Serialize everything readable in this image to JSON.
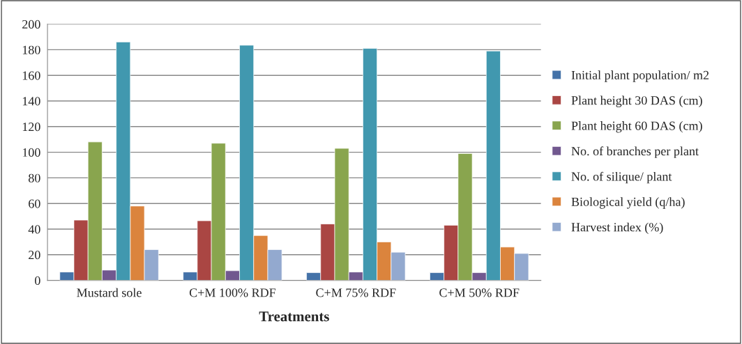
{
  "chart_data": {
    "type": "bar",
    "xlabel": "Treatments",
    "categories": [
      "Mustard sole",
      "C+M 100% RDF",
      "C+M 75% RDF",
      "C+M 50% RDF"
    ],
    "series": [
      {
        "name": "Initial plant population/ m2",
        "color": "#4472a8",
        "values": [
          6.5,
          6.5,
          6,
          6
        ]
      },
      {
        "name": "Plant height 30 DAS (cm)",
        "color": "#aa4643",
        "values": [
          47,
          46.5,
          44,
          43
        ]
      },
      {
        "name": "Plant height 60 DAS (cm)",
        "color": "#89a54e",
        "values": [
          108,
          107,
          103,
          99
        ]
      },
      {
        "name": "No. of branches per plant",
        "color": "#71588f",
        "values": [
          8,
          7.5,
          6.5,
          6
        ]
      },
      {
        "name": "No. of silique/ plant",
        "color": "#4198af",
        "values": [
          186,
          183.5,
          181,
          179
        ]
      },
      {
        "name": "Biological yield (q/ha)",
        "color": "#db843d",
        "values": [
          58,
          35,
          30,
          26
        ]
      },
      {
        "name": "Harvest index (%)",
        "color": "#93a9cf",
        "values": [
          24,
          24,
          22,
          21
        ]
      }
    ],
    "ylim": [
      0,
      200
    ],
    "yticks": [
      0,
      20,
      40,
      60,
      80,
      100,
      120,
      140,
      160,
      180,
      200
    ],
    "grid": "y",
    "legend": "right"
  }
}
